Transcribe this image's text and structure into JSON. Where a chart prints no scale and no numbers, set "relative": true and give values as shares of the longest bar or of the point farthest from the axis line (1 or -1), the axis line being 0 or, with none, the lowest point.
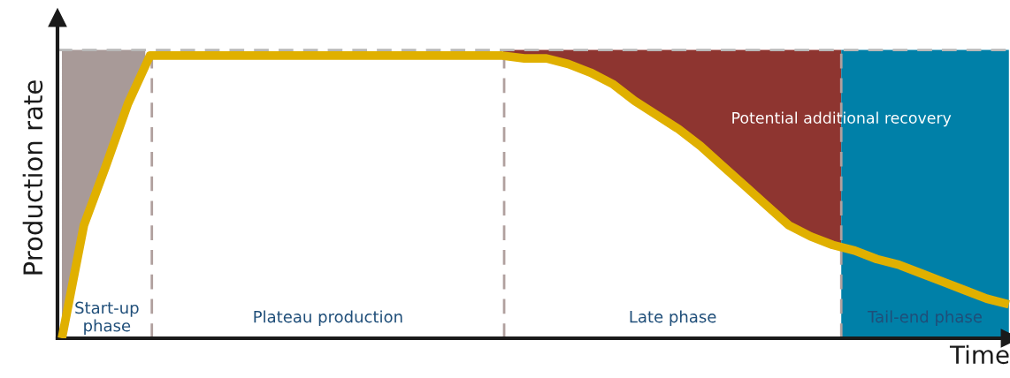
{
  "chart_data": {
    "type": "line",
    "relative": true,
    "xlabel": "Time",
    "ylabel": "Production rate",
    "line_style": "solid",
    "categories": [
      null,
      null,
      null,
      null,
      null,
      null,
      null,
      null,
      null,
      null,
      null,
      null,
      null,
      null,
      null,
      null,
      null,
      null,
      null,
      null,
      null,
      null,
      null,
      null,
      null,
      null,
      null,
      null,
      null,
      null,
      null,
      null,
      null,
      null,
      null,
      null,
      null,
      null,
      null,
      null,
      null,
      null,
      null,
      null
    ],
    "series": [
      {
        "color": "#e0b000",
        "values": [
          0,
          0.4,
          0.61,
          0.83,
          1,
          1,
          1,
          1,
          1,
          1,
          1,
          1,
          1,
          1,
          1,
          1,
          1,
          1,
          1,
          1,
          1,
          0.99,
          0.99,
          0.97,
          0.94,
          0.9,
          0.84,
          0.79,
          0.74,
          0.68,
          0.61,
          0.54,
          0.47,
          0.4,
          0.36,
          0.33,
          0.31,
          0.28,
          0.26,
          0.23,
          0.2,
          0.17,
          0.14,
          0.12
        ]
      }
    ],
    "ref_lines": [
      {
        "axis": "y",
        "value": 1.02,
        "color": "#b8b8b8",
        "line_style": "dashed"
      }
    ],
    "annotations": [
      "Potential additional recovery",
      "Start-up\nphase",
      "Plateau production",
      "Late phase",
      "Tail-end phase"
    ]
  }
}
